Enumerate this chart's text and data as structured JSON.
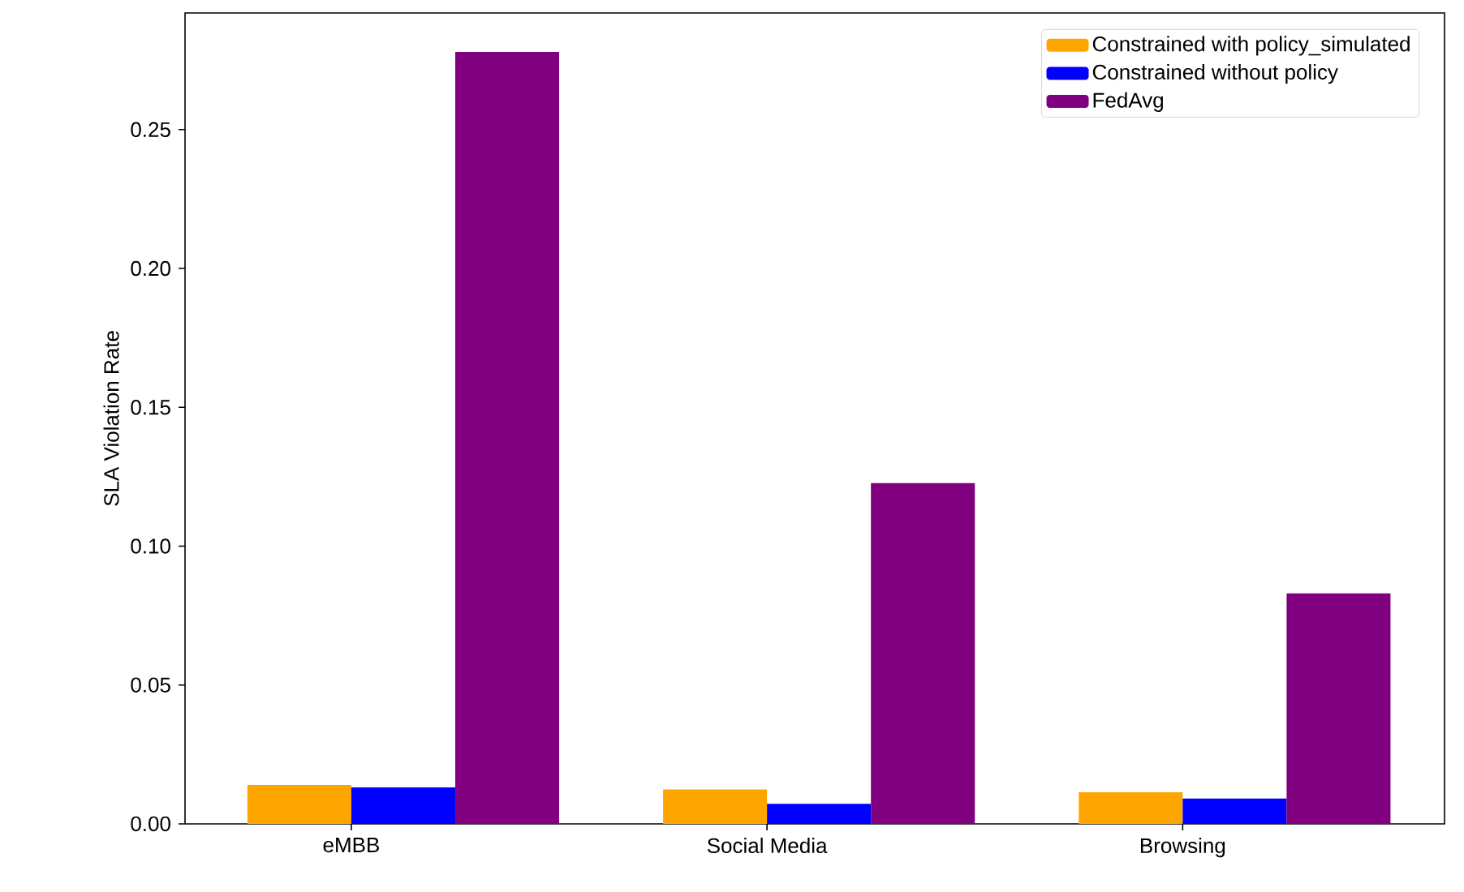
{
  "chart_data": {
    "type": "bar",
    "ylabel": "SLA Violation Rate",
    "categories": [
      "eMBB",
      "Social Media",
      "Browsing"
    ],
    "series": [
      {
        "name": "Constrained with policy_simulated",
        "color": "#ffa500",
        "values": [
          0.014,
          0.0124,
          0.0114
        ]
      },
      {
        "name": "Constrained without policy",
        "color": "#0000ff",
        "values": [
          0.0131,
          0.0072,
          0.0091
        ]
      },
      {
        "name": "FedAvg",
        "color": "#800080",
        "values": [
          0.278,
          0.1227,
          0.083
        ]
      }
    ],
    "ylim": [
      0,
      0.292
    ],
    "yticks": [
      {
        "value": 0,
        "label": "0.00"
      },
      {
        "value": 0.05,
        "label": "0.05"
      },
      {
        "value": 0.1,
        "label": "0.10"
      },
      {
        "value": 0.15,
        "label": "0.15"
      },
      {
        "value": 0.2,
        "label": "0.20"
      },
      {
        "value": 0.25,
        "label": "0.25"
      }
    ],
    "grid": false,
    "legend": "top right"
  }
}
